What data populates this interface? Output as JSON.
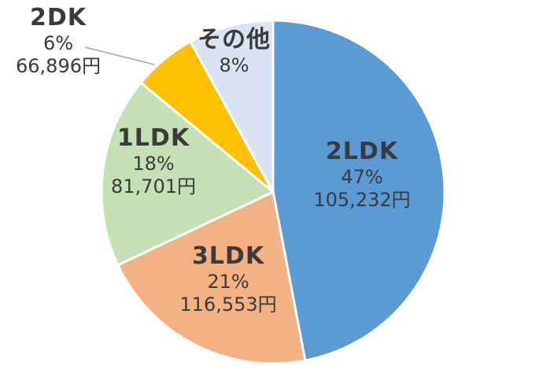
{
  "chart_data": {
    "type": "pie",
    "slices": [
      {
        "category": "2LDK",
        "percent": "47%",
        "amount": "105,232円",
        "value": 47,
        "color": "#5b9bd5"
      },
      {
        "category": "3LDK",
        "percent": "21%",
        "amount": "116,553円",
        "value": 21,
        "color": "#f4b183"
      },
      {
        "category": "1LDK",
        "percent": "18%",
        "amount": "81,701円",
        "value": 18,
        "color": "#c5e0b4"
      },
      {
        "category": "2DK",
        "percent": "6%",
        "amount": "66,896円",
        "value": 6,
        "color": "#ffc000"
      },
      {
        "category": "その他",
        "percent": "8%",
        "value": 8,
        "color": "#dae3f3"
      }
    ],
    "start_angle_deg": 0,
    "direction": "clockwise",
    "legend": "none"
  }
}
